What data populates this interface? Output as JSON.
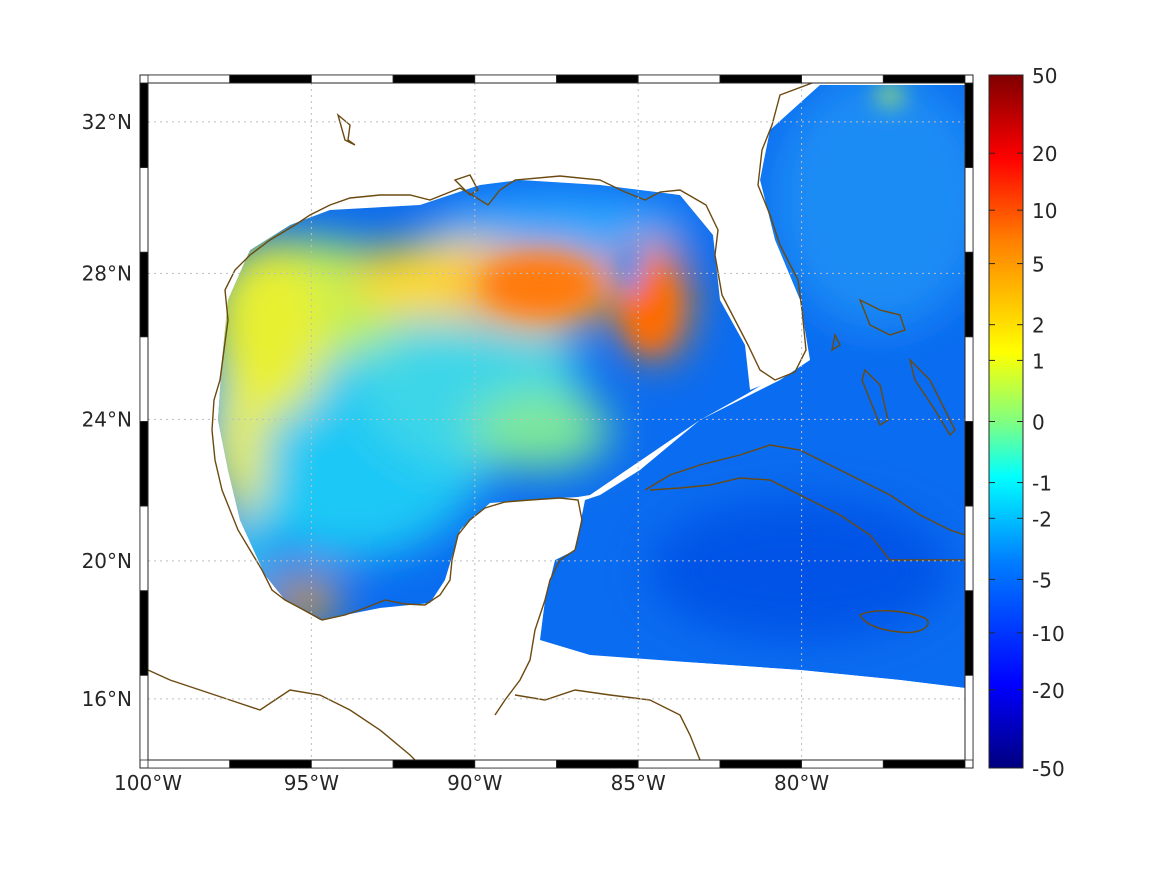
{
  "map": {
    "type": "geographic-heatmap",
    "projection": "mercator",
    "lon_range": [
      -100,
      -75
    ],
    "lat_range": [
      14.2,
      33
    ],
    "x_ticks": [
      {
        "lon": -100,
        "label": "100°W"
      },
      {
        "lon": -95,
        "label": "95°W"
      },
      {
        "lon": -90,
        "label": "90°W"
      },
      {
        "lon": -85,
        "label": "85°W"
      },
      {
        "lon": -80,
        "label": "80°W"
      }
    ],
    "y_ticks": [
      {
        "lat": 32,
        "label": "32°N"
      },
      {
        "lat": 28,
        "label": "28°N"
      },
      {
        "lat": 24,
        "label": "24°N"
      },
      {
        "lat": 20,
        "label": "20°N"
      },
      {
        "lat": 16,
        "label": "16°N"
      }
    ],
    "grid": true,
    "grid_style": "dotted",
    "frame": "black-white alternating border",
    "coastline_color": "#6b4a10",
    "colormap": "jet",
    "land_color": "#ffffff"
  },
  "colorbar": {
    "placement": "right",
    "ticks": [
      {
        "value": 50,
        "label": "50"
      },
      {
        "value": 20,
        "label": "20"
      },
      {
        "value": 10,
        "label": "10"
      },
      {
        "value": 5,
        "label": "5"
      },
      {
        "value": 2,
        "label": "2"
      },
      {
        "value": 1,
        "label": "1"
      },
      {
        "value": 0,
        "label": "0"
      },
      {
        "value": -1,
        "label": "-1"
      },
      {
        "value": -2,
        "label": "-2"
      },
      {
        "value": -5,
        "label": "-5"
      },
      {
        "value": -10,
        "label": "-10"
      },
      {
        "value": -20,
        "label": "-20"
      },
      {
        "value": -50,
        "label": "-50"
      }
    ],
    "colors": [
      "#00007f",
      "#0000ff",
      "#0080ff",
      "#00ffff",
      "#80ff80",
      "#ffff00",
      "#ff8000",
      "#ff0000",
      "#7f0000"
    ]
  },
  "regions": [
    {
      "name": "western-gulf-shelf",
      "lon": -96,
      "lat": 26.5,
      "value": 1.5
    },
    {
      "name": "texas-coast",
      "lon": -97.3,
      "lat": 23,
      "value": 2
    },
    {
      "name": "campeche-bay-hotspot",
      "lon": -94.6,
      "lat": 18.5,
      "value": 4
    },
    {
      "name": "northern-gulf-band",
      "lon": -88.5,
      "lat": 27.8,
      "value": 5
    },
    {
      "name": "loop-current-east",
      "lon": -84.8,
      "lat": 27.3,
      "value": 6
    },
    {
      "name": "central-gulf",
      "lon": -92.5,
      "lat": 24,
      "value": -1.5
    },
    {
      "name": "yucatan-channel",
      "lon": -86,
      "lat": 22.5,
      "value": -3
    },
    {
      "name": "atlantic-east-of-florida",
      "lon": -78.5,
      "lat": 30,
      "value": -3.5
    },
    {
      "name": "caribbean",
      "lon": -80,
      "lat": 18.5,
      "value": -6
    },
    {
      "name": "bahamas",
      "lon": -77.5,
      "lat": 24.5,
      "value": -5
    }
  ]
}
